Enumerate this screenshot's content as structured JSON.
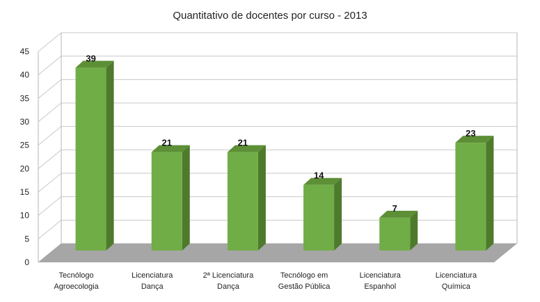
{
  "chart_data": {
    "type": "bar",
    "title": "Quantitativo de docentes por curso - 2013",
    "categories": [
      [
        "Tecnólogo",
        "Agroecologia"
      ],
      [
        "Licenciatura",
        "Dança"
      ],
      [
        "2ª Licenciatura",
        "Dança"
      ],
      [
        "Tecnólogo em",
        "Gestão Pública"
      ],
      [
        "Licenciatura",
        "Espanhol"
      ],
      [
        "Licenciatura",
        "Química"
      ]
    ],
    "values": [
      39,
      21,
      21,
      14,
      7,
      23
    ],
    "data_labels": [
      "39",
      "21",
      "21",
      "14",
      "7",
      "23"
    ],
    "y_ticks": [
      "0",
      "5",
      "10",
      "15",
      "20",
      "25",
      "30",
      "35",
      "40",
      "45"
    ],
    "ylim": [
      0,
      45
    ],
    "xlabel": "",
    "ylabel": "",
    "grid": true,
    "legend": "none",
    "style": "3d-column",
    "colors": {
      "bar_front": "#70ad47",
      "bar_side": "#4e7a2c",
      "bar_top": "#5d8f36",
      "floor": "#a6a6a6",
      "grid": "#c8c8c8",
      "axis": "#b4b4b4"
    }
  }
}
